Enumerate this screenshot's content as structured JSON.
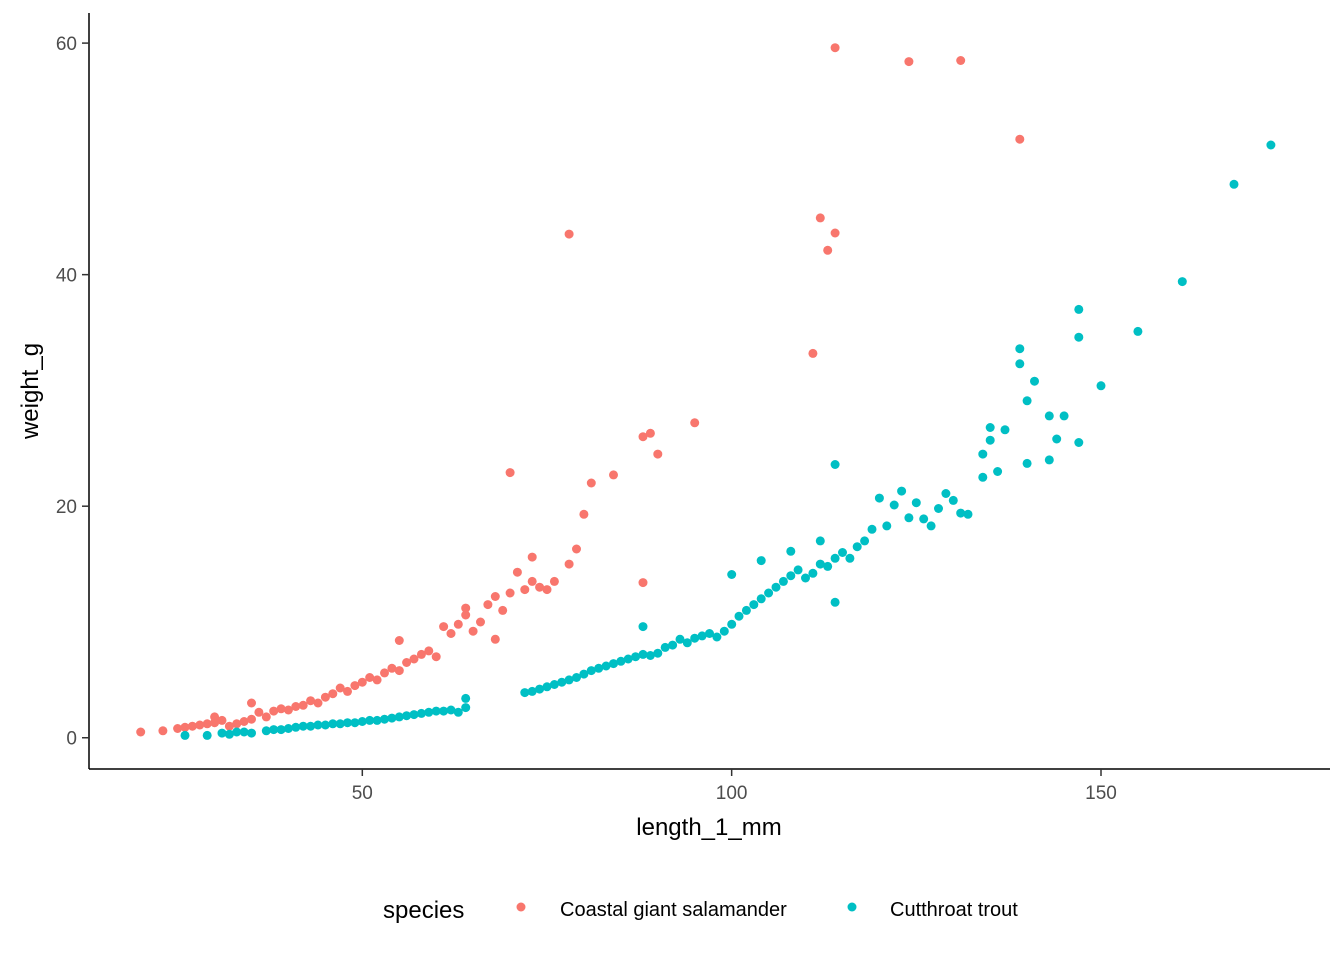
{
  "chart_data": {
    "type": "scatter",
    "title": "",
    "xlabel": "length_1_mm",
    "ylabel": "weight_g",
    "xlim": [
      13,
      181
    ],
    "ylim": [
      -2.7,
      62.6
    ],
    "xticks": [
      50,
      100,
      150
    ],
    "yticks": [
      0,
      20,
      40,
      60
    ],
    "grid": false,
    "legend": {
      "title": "species",
      "position": "bottom",
      "entries": [
        "Coastal giant salamander",
        "Cutthroat trout"
      ]
    },
    "series": [
      {
        "name": "Coastal giant salamander",
        "color": "#F8766D",
        "points": [
          [
            20,
            0.5
          ],
          [
            23,
            0.6
          ],
          [
            25,
            0.8
          ],
          [
            26,
            0.9
          ],
          [
            27,
            1.0
          ],
          [
            28,
            1.1
          ],
          [
            29,
            1.2
          ],
          [
            30,
            1.3
          ],
          [
            30,
            1.8
          ],
          [
            31,
            1.5
          ],
          [
            32,
            1.0
          ],
          [
            33,
            1.2
          ],
          [
            34,
            1.4
          ],
          [
            35,
            1.6
          ],
          [
            35,
            3.0
          ],
          [
            36,
            2.2
          ],
          [
            37,
            1.8
          ],
          [
            38,
            2.3
          ],
          [
            39,
            2.5
          ],
          [
            40,
            2.4
          ],
          [
            41,
            2.7
          ],
          [
            42,
            2.8
          ],
          [
            43,
            3.2
          ],
          [
            44,
            3.0
          ],
          [
            45,
            3.5
          ],
          [
            46,
            3.8
          ],
          [
            47,
            4.3
          ],
          [
            48,
            4.0
          ],
          [
            49,
            4.5
          ],
          [
            50,
            4.8
          ],
          [
            51,
            5.2
          ],
          [
            52,
            5.0
          ],
          [
            53,
            5.6
          ],
          [
            54,
            6.0
          ],
          [
            55,
            5.8
          ],
          [
            55,
            8.4
          ],
          [
            56,
            6.5
          ],
          [
            57,
            6.8
          ],
          [
            58,
            7.2
          ],
          [
            59,
            7.5
          ],
          [
            60,
            7.0
          ],
          [
            61,
            9.6
          ],
          [
            62,
            9.0
          ],
          [
            63,
            9.8
          ],
          [
            64,
            10.6
          ],
          [
            64,
            11.2
          ],
          [
            65,
            9.2
          ],
          [
            66,
            10.0
          ],
          [
            67,
            11.5
          ],
          [
            68,
            12.2
          ],
          [
            68,
            8.5
          ],
          [
            69,
            11.0
          ],
          [
            70,
            12.5
          ],
          [
            71,
            14.3
          ],
          [
            72,
            12.8
          ],
          [
            73,
            13.5
          ],
          [
            73,
            15.6
          ],
          [
            74,
            13.0
          ],
          [
            75,
            12.8
          ],
          [
            76,
            13.5
          ],
          [
            78,
            15.0
          ],
          [
            79,
            16.3
          ],
          [
            80,
            19.3
          ],
          [
            81,
            22.0
          ],
          [
            84,
            22.7
          ],
          [
            88,
            13.4
          ],
          [
            88,
            26.0
          ],
          [
            89,
            26.3
          ],
          [
            90,
            24.5
          ],
          [
            95,
            27.2
          ],
          [
            70,
            22.9
          ],
          [
            78,
            43.5
          ],
          [
            111,
            33.2
          ],
          [
            112,
            44.9
          ],
          [
            113,
            42.1
          ],
          [
            114,
            43.6
          ],
          [
            114,
            59.6
          ],
          [
            124,
            58.4
          ],
          [
            131,
            58.5
          ],
          [
            139,
            51.7
          ]
        ]
      },
      {
        "name": "Cutthroat trout",
        "color": "#00BFC4",
        "points": [
          [
            26,
            0.2
          ],
          [
            29,
            0.2
          ],
          [
            31,
            0.4
          ],
          [
            32,
            0.3
          ],
          [
            33,
            0.5
          ],
          [
            34,
            0.5
          ],
          [
            35,
            0.4
          ],
          [
            37,
            0.6
          ],
          [
            38,
            0.7
          ],
          [
            39,
            0.7
          ],
          [
            40,
            0.8
          ],
          [
            41,
            0.9
          ],
          [
            42,
            1.0
          ],
          [
            43,
            1.0
          ],
          [
            44,
            1.1
          ],
          [
            45,
            1.1
          ],
          [
            46,
            1.2
          ],
          [
            47,
            1.2
          ],
          [
            48,
            1.3
          ],
          [
            49,
            1.3
          ],
          [
            50,
            1.4
          ],
          [
            51,
            1.5
          ],
          [
            52,
            1.5
          ],
          [
            53,
            1.6
          ],
          [
            54,
            1.7
          ],
          [
            55,
            1.8
          ],
          [
            56,
            1.9
          ],
          [
            57,
            2.0
          ],
          [
            58,
            2.1
          ],
          [
            59,
            2.2
          ],
          [
            60,
            2.3
          ],
          [
            61,
            2.3
          ],
          [
            62,
            2.4
          ],
          [
            63,
            2.2
          ],
          [
            64,
            2.6
          ],
          [
            64,
            3.4
          ],
          [
            72,
            3.9
          ],
          [
            73,
            4.0
          ],
          [
            74,
            4.2
          ],
          [
            75,
            4.4
          ],
          [
            76,
            4.6
          ],
          [
            77,
            4.8
          ],
          [
            78,
            5.0
          ],
          [
            79,
            5.2
          ],
          [
            80,
            5.5
          ],
          [
            81,
            5.8
          ],
          [
            82,
            6.0
          ],
          [
            83,
            6.2
          ],
          [
            84,
            6.4
          ],
          [
            85,
            6.6
          ],
          [
            86,
            6.8
          ],
          [
            87,
            7.0
          ],
          [
            88,
            7.2
          ],
          [
            88,
            9.6
          ],
          [
            89,
            7.1
          ],
          [
            90,
            7.3
          ],
          [
            91,
            7.8
          ],
          [
            92,
            8.0
          ],
          [
            93,
            8.5
          ],
          [
            94,
            8.2
          ],
          [
            95,
            8.6
          ],
          [
            96,
            8.8
          ],
          [
            97,
            9.0
          ],
          [
            98,
            8.7
          ],
          [
            99,
            9.2
          ],
          [
            100,
            9.8
          ],
          [
            100,
            14.1
          ],
          [
            101,
            10.5
          ],
          [
            102,
            11.0
          ],
          [
            103,
            11.5
          ],
          [
            104,
            12.0
          ],
          [
            104,
            15.3
          ],
          [
            105,
            12.5
          ],
          [
            106,
            13.0
          ],
          [
            107,
            13.5
          ],
          [
            108,
            14.0
          ],
          [
            108,
            16.1
          ],
          [
            109,
            14.5
          ],
          [
            110,
            13.8
          ],
          [
            111,
            14.2
          ],
          [
            112,
            15.0
          ],
          [
            112,
            17.0
          ],
          [
            113,
            14.8
          ],
          [
            114,
            15.5
          ],
          [
            114,
            11.7
          ],
          [
            114,
            23.6
          ],
          [
            115,
            16.0
          ],
          [
            116,
            15.5
          ],
          [
            117,
            16.5
          ],
          [
            118,
            17.0
          ],
          [
            119,
            18.0
          ],
          [
            120,
            20.7
          ],
          [
            121,
            18.3
          ],
          [
            122,
            20.1
          ],
          [
            123,
            21.3
          ],
          [
            124,
            19.0
          ],
          [
            125,
            20.3
          ],
          [
            126,
            18.9
          ],
          [
            127,
            18.3
          ],
          [
            128,
            19.8
          ],
          [
            129,
            21.1
          ],
          [
            130,
            20.5
          ],
          [
            131,
            19.4
          ],
          [
            132,
            19.3
          ],
          [
            134,
            22.5
          ],
          [
            134,
            24.5
          ],
          [
            135,
            25.7
          ],
          [
            135,
            26.8
          ],
          [
            136,
            23.0
          ],
          [
            137,
            26.6
          ],
          [
            139,
            32.3
          ],
          [
            139,
            33.6
          ],
          [
            140,
            29.1
          ],
          [
            140,
            23.7
          ],
          [
            141,
            30.8
          ],
          [
            143,
            24.0
          ],
          [
            143,
            27.8
          ],
          [
            144,
            25.8
          ],
          [
            145,
            27.8
          ],
          [
            147,
            25.5
          ],
          [
            147,
            34.6
          ],
          [
            147,
            37.0
          ],
          [
            150,
            30.4
          ],
          [
            155,
            35.1
          ],
          [
            161,
            39.4
          ],
          [
            168,
            47.8
          ],
          [
            173,
            51.2
          ]
        ]
      }
    ]
  }
}
